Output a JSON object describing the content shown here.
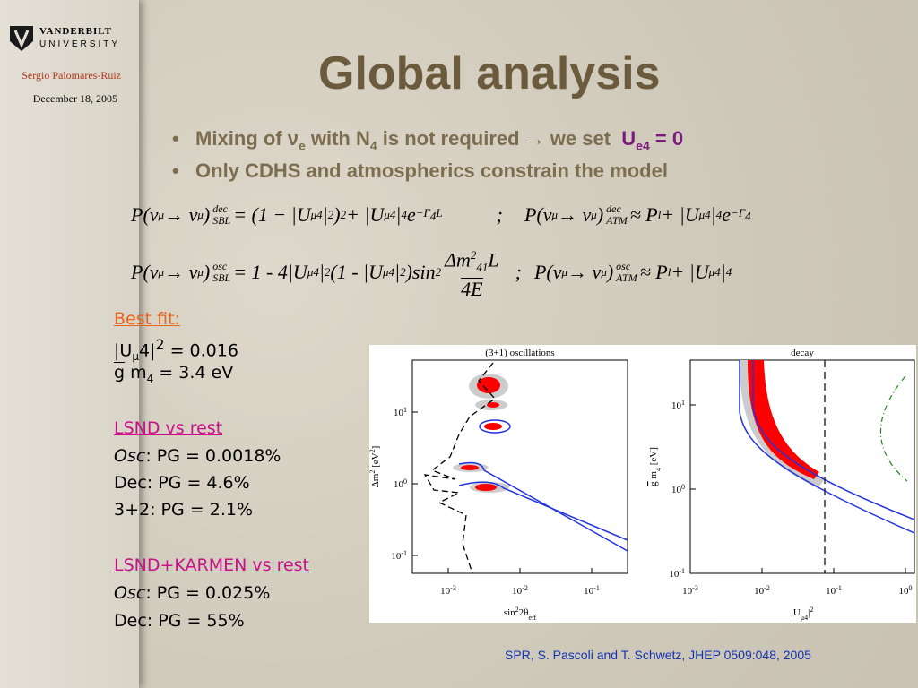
{
  "header": {
    "logo_name": "VANDERBILT",
    "logo_sub": "UNIVERSITY",
    "author": "Sergio Palomares-Ruiz",
    "date": "December 18, 2005"
  },
  "title": "Global analysis",
  "bullets": [
    [
      "Mixing of ",
      "ν",
      "e",
      " with N",
      "4",
      " is not required → we set",
      "U",
      "e4",
      " = 0"
    ],
    [
      "Only CDHS and atmospherics constrain the model"
    ]
  ],
  "equations": [
    [
      "P(ν",
      "μ",
      " → ν",
      "μ",
      ")",
      "dec",
      "SBL",
      " = (1 − |U",
      "μ4",
      "|",
      "2",
      ")",
      "2",
      " + |U",
      "μ4",
      "|",
      "4",
      " e",
      "−Γ",
      "4",
      "L",
      ";",
      "P(ν",
      "μ",
      " → ν",
      "μ",
      ")",
      "dec",
      "ATM",
      " ≈ P",
      "l",
      " + |U",
      "μ4",
      "|",
      "4",
      " e",
      "−Γ",
      "4"
    ],
    [
      "P(ν",
      "μ",
      " → ν",
      "μ",
      ")",
      "osc",
      "SBL",
      " = 1 - 4|U",
      "μ4",
      "|",
      "2",
      "(1 - |U",
      "μ4",
      "|",
      "2",
      ")sin",
      "2",
      "Δm",
      "2",
      "41",
      "L",
      "4E",
      ";",
      "P(ν",
      "μ",
      " → ν",
      "μ",
      ")",
      "osc",
      "ATM",
      " ≈ P",
      "l",
      " + |U",
      "μ4",
      "|",
      "4"
    ]
  ],
  "results": {
    "best_fit": {
      "heading": "Best fit:",
      "lines": [
        [
          "|U",
          "μ",
          "4",
          "|",
          "2",
          " = 0.016"
        ],
        [
          "g",
          " m",
          "4",
          " = 3.4 eV"
        ]
      ]
    },
    "lsnd_vs_rest": {
      "heading": "LSND vs rest",
      "lines": [
        [
          "Osc",
          ": PG = 0.0018%"
        ],
        [
          "Dec",
          ": PG = 4.6%"
        ],
        [
          "3+2",
          ": PG = 2.1%"
        ]
      ]
    },
    "lsnd_karmen_vs_rest": {
      "heading": "LSND+KARMEN vs rest",
      "lines": [
        [
          "Osc",
          ": PG = 0.025%"
        ],
        [
          "Dec",
          ": PG = 55%"
        ]
      ]
    }
  },
  "plots": [
    {
      "title": "(3+1) oscillations",
      "xlabel": [
        "sin",
        "2",
        "2θ",
        "eff"
      ],
      "ylabel": [
        "Δm",
        "2",
        " [eV",
        "2",
        "]"
      ],
      "yticks": [
        [
          "10",
          "1"
        ],
        [
          "10",
          "0"
        ],
        [
          "10",
          "-1"
        ]
      ],
      "xticks": [
        [
          "10",
          "-3"
        ],
        [
          "10",
          "-2"
        ],
        [
          "10",
          "-1"
        ]
      ]
    },
    {
      "title": "decay",
      "xlabel": [
        "|U",
        "μ4",
        "|",
        "2"
      ],
      "ylabel": [
        "g",
        " m",
        "4",
        " [eV]"
      ],
      "yticks": [
        [
          "10",
          "1"
        ],
        [
          "10",
          "0"
        ],
        [
          "10",
          "-1"
        ]
      ],
      "xticks": [
        [
          "10",
          "-3"
        ],
        [
          "10",
          "-2"
        ],
        [
          "10",
          "-1"
        ],
        [
          "10",
          "0"
        ]
      ]
    }
  ],
  "citation": "SPR, S. Pascoli and T. Schwetz, JHEP 0509:048, 2005"
}
